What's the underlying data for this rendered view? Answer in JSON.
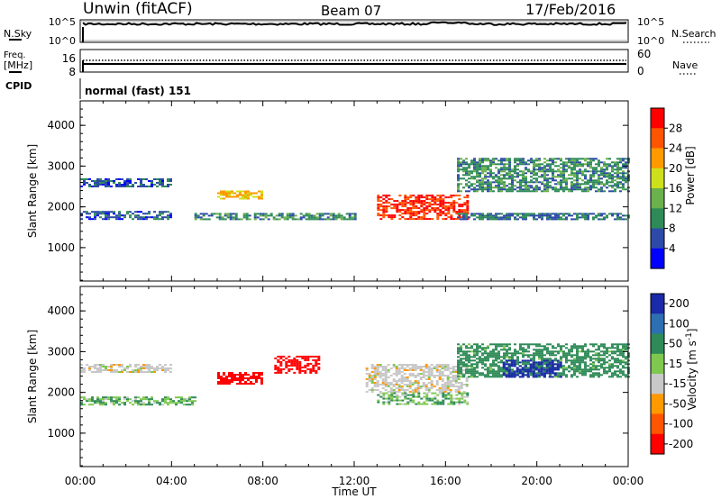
{
  "header": {
    "station": "Unwin (fitACF)",
    "beam": "Beam 07",
    "date": "17/Feb/2016"
  },
  "nsky_panel": {
    "left_label": "N.Sky",
    "right_label": "N.Search",
    "left_ticks": [
      "10^5",
      "10^0"
    ],
    "right_ticks": [
      "10^5",
      "10^0"
    ]
  },
  "freq_panel": {
    "left_label_line1": "Freq.",
    "left_label_line2": "[MHz]",
    "right_label": "Nave",
    "left_ticks": [
      "16",
      "8"
    ],
    "right_ticks": [
      "60",
      "0"
    ]
  },
  "cpid_panel": {
    "label": "CPID",
    "value": "normal (fast) 151"
  },
  "chart_data": [
    {
      "type": "heatmap",
      "title": "",
      "xlabel": "",
      "ylabel": "Slant Range [km]",
      "xlim": [
        "00:00",
        "24:00"
      ],
      "ylim": [
        180,
        4600
      ],
      "y_ticks": [
        "1000",
        "2000",
        "3000",
        "4000"
      ],
      "colorbar": {
        "label": "Power [dB]",
        "ticks": [
          "4",
          "8",
          "12",
          "16",
          "20",
          "24",
          "28"
        ],
        "colors": [
          "#0000ff",
          "#2d4aa8",
          "#2e8b57",
          "#6ab04c",
          "#cde01c",
          "#ff9900",
          "#ff5500",
          "#ff0000"
        ]
      },
      "regions": [
        {
          "x": [
            "00:00",
            "04:00"
          ],
          "slant_range_km": [
            2500,
            2700
          ],
          "level": "6"
        },
        {
          "x": [
            "00:00",
            "04:00"
          ],
          "slant_range_km": [
            1700,
            1900
          ],
          "level": "6"
        },
        {
          "x": [
            "05:00",
            "12:00"
          ],
          "slant_range_km": [
            1700,
            1850
          ],
          "level": "10"
        },
        {
          "x": [
            "06:00",
            "08:00"
          ],
          "slant_range_km": [
            2200,
            2400
          ],
          "level": "20"
        },
        {
          "x": [
            "13:00",
            "17:00"
          ],
          "slant_range_km": [
            1700,
            2300
          ],
          "level": "28"
        },
        {
          "x": [
            "16:30",
            "24:00"
          ],
          "slant_range_km": [
            2400,
            3200
          ],
          "level": "10"
        },
        {
          "x": [
            "16:30",
            "24:00"
          ],
          "slant_range_km": [
            1700,
            1850
          ],
          "level": "8"
        }
      ]
    },
    {
      "type": "heatmap",
      "title": "",
      "xlabel": "Time UT",
      "ylabel": "Slant Range [km]",
      "xlim": [
        "00:00",
        "24:00"
      ],
      "ylim": [
        180,
        4600
      ],
      "x_ticks": [
        "00:00",
        "04:00",
        "08:00",
        "12:00",
        "16:00",
        "20:00",
        "00:00"
      ],
      "y_ticks": [
        "1000",
        "2000",
        "3000",
        "4000"
      ],
      "colorbar": {
        "label": "Velocity [m s^-1]",
        "ticks": [
          "200",
          "100",
          "50",
          "15",
          "-15",
          "-50",
          "-100",
          "-200"
        ],
        "colors": [
          "#1a2aa8",
          "#2d6fb0",
          "#2e8b57",
          "#7ec850",
          "#c8c8c8",
          "#ff9900",
          "#ff5500",
          "#ff0000"
        ]
      },
      "regions": [
        {
          "x": [
            "00:00",
            "04:00"
          ],
          "slant_range_km": [
            2500,
            2700
          ],
          "level": "0"
        },
        {
          "x": [
            "00:00",
            "05:00"
          ],
          "slant_range_km": [
            1700,
            1900
          ],
          "level": "30"
        },
        {
          "x": [
            "06:00",
            "08:00"
          ],
          "slant_range_km": [
            2200,
            2500
          ],
          "level": "-200"
        },
        {
          "x": [
            "08:30",
            "10:30"
          ],
          "slant_range_km": [
            2500,
            2900
          ],
          "level": "-200"
        },
        {
          "x": [
            "12:30",
            "17:00"
          ],
          "slant_range_km": [
            2000,
            2700
          ],
          "level": "0"
        },
        {
          "x": [
            "13:00",
            "17:00"
          ],
          "slant_range_km": [
            1700,
            2000
          ],
          "level": "30"
        },
        {
          "x": [
            "16:30",
            "24:00"
          ],
          "slant_range_km": [
            2400,
            3200
          ],
          "level": "50"
        },
        {
          "x": [
            "18:30",
            "21:00"
          ],
          "slant_range_km": [
            2400,
            2800
          ],
          "level": "200"
        }
      ]
    }
  ]
}
